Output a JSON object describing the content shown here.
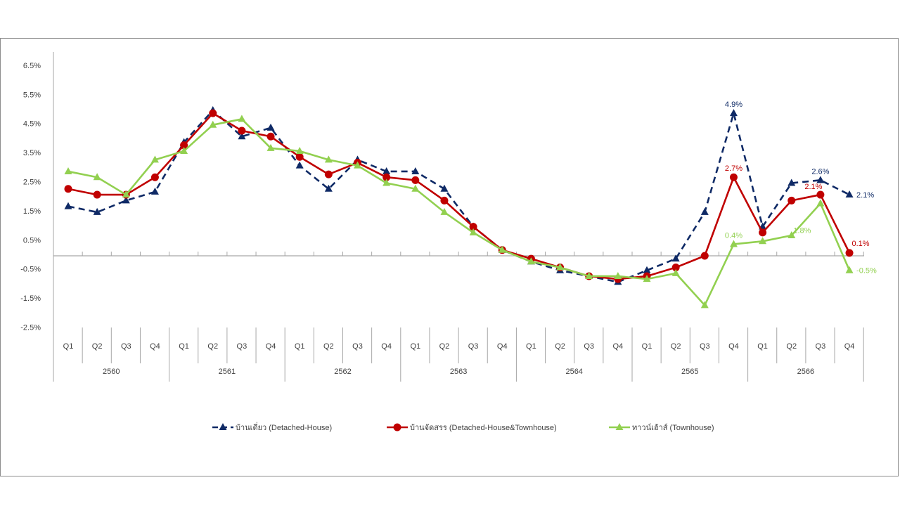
{
  "chart_data": {
    "type": "line",
    "title": "",
    "xlabel": "",
    "ylabel": "",
    "ylim": [
      -2.5,
      6.5
    ],
    "y_ticks": [
      "6.5%",
      "5.5%",
      "4.5%",
      "3.5%",
      "2.5%",
      "1.5%",
      "0.5%",
      "-0.5%",
      "-1.5%",
      "-2.5%"
    ],
    "y_tick_values": [
      6.5,
      5.5,
      4.5,
      3.5,
      2.5,
      1.5,
      0.5,
      -0.5,
      -1.5,
      -2.5
    ],
    "years": [
      "2560",
      "2561",
      "2562",
      "2563",
      "2564",
      "2565",
      "2566"
    ],
    "quarters": [
      "Q1",
      "Q2",
      "Q3",
      "Q4"
    ],
    "grid": false,
    "legend_position": "bottom",
    "series": [
      {
        "name": "บ้านเดี่ยว (Detached-House)",
        "color": "#0f2a66",
        "dash": true,
        "marker": "triangle",
        "values": [
          1.7,
          1.5,
          1.9,
          2.2,
          3.9,
          5.0,
          4.1,
          4.4,
          3.1,
          2.3,
          3.3,
          2.9,
          2.9,
          2.3,
          1.0,
          0.2,
          -0.2,
          -0.5,
          -0.7,
          -0.9,
          -0.5,
          -0.1,
          1.5,
          4.9,
          1.0,
          2.5,
          2.6,
          2.1
        ],
        "labels": [
          {
            "index": 23,
            "text": "4.9%",
            "pos": "above"
          },
          {
            "index": 26,
            "text": "2.6%",
            "pos": "above"
          },
          {
            "index": 27,
            "text": "2.1%",
            "pos": "right"
          }
        ]
      },
      {
        "name": "บ้านจัดสรร (Detached-House&Townhouse)",
        "color": "#c00000",
        "dash": false,
        "marker": "circle",
        "values": [
          2.3,
          2.1,
          2.1,
          2.7,
          3.8,
          4.9,
          4.3,
          4.1,
          3.4,
          2.8,
          3.2,
          2.7,
          2.6,
          1.9,
          1.0,
          0.2,
          -0.1,
          -0.4,
          -0.7,
          -0.8,
          -0.7,
          -0.4,
          0.0,
          2.7,
          0.8,
          1.9,
          2.1,
          0.1
        ],
        "labels": [
          {
            "index": 23,
            "text": "2.7%",
            "pos": "above"
          },
          {
            "index": 26,
            "text": "2.1%",
            "pos": "aboveleft"
          },
          {
            "index": 27,
            "text": "0.1%",
            "pos": "aboveright"
          }
        ]
      },
      {
        "name": "ทาวน์เฮ้าส์ (Townhouse)",
        "color": "#92d050",
        "dash": false,
        "marker": "triangle",
        "values": [
          2.9,
          2.7,
          2.1,
          3.3,
          3.6,
          4.5,
          4.7,
          3.7,
          3.6,
          3.3,
          3.1,
          2.5,
          2.3,
          1.5,
          0.8,
          0.2,
          -0.2,
          -0.4,
          -0.7,
          -0.7,
          -0.8,
          -0.6,
          -1.7,
          0.4,
          0.5,
          0.7,
          1.8,
          -0.5
        ],
        "labels": [
          {
            "index": 23,
            "text": "0.4%",
            "pos": "above"
          },
          {
            "index": 26,
            "text": "1.8%",
            "pos": "belowleft"
          },
          {
            "index": 27,
            "text": "-0.5%",
            "pos": "right"
          }
        ]
      }
    ]
  }
}
